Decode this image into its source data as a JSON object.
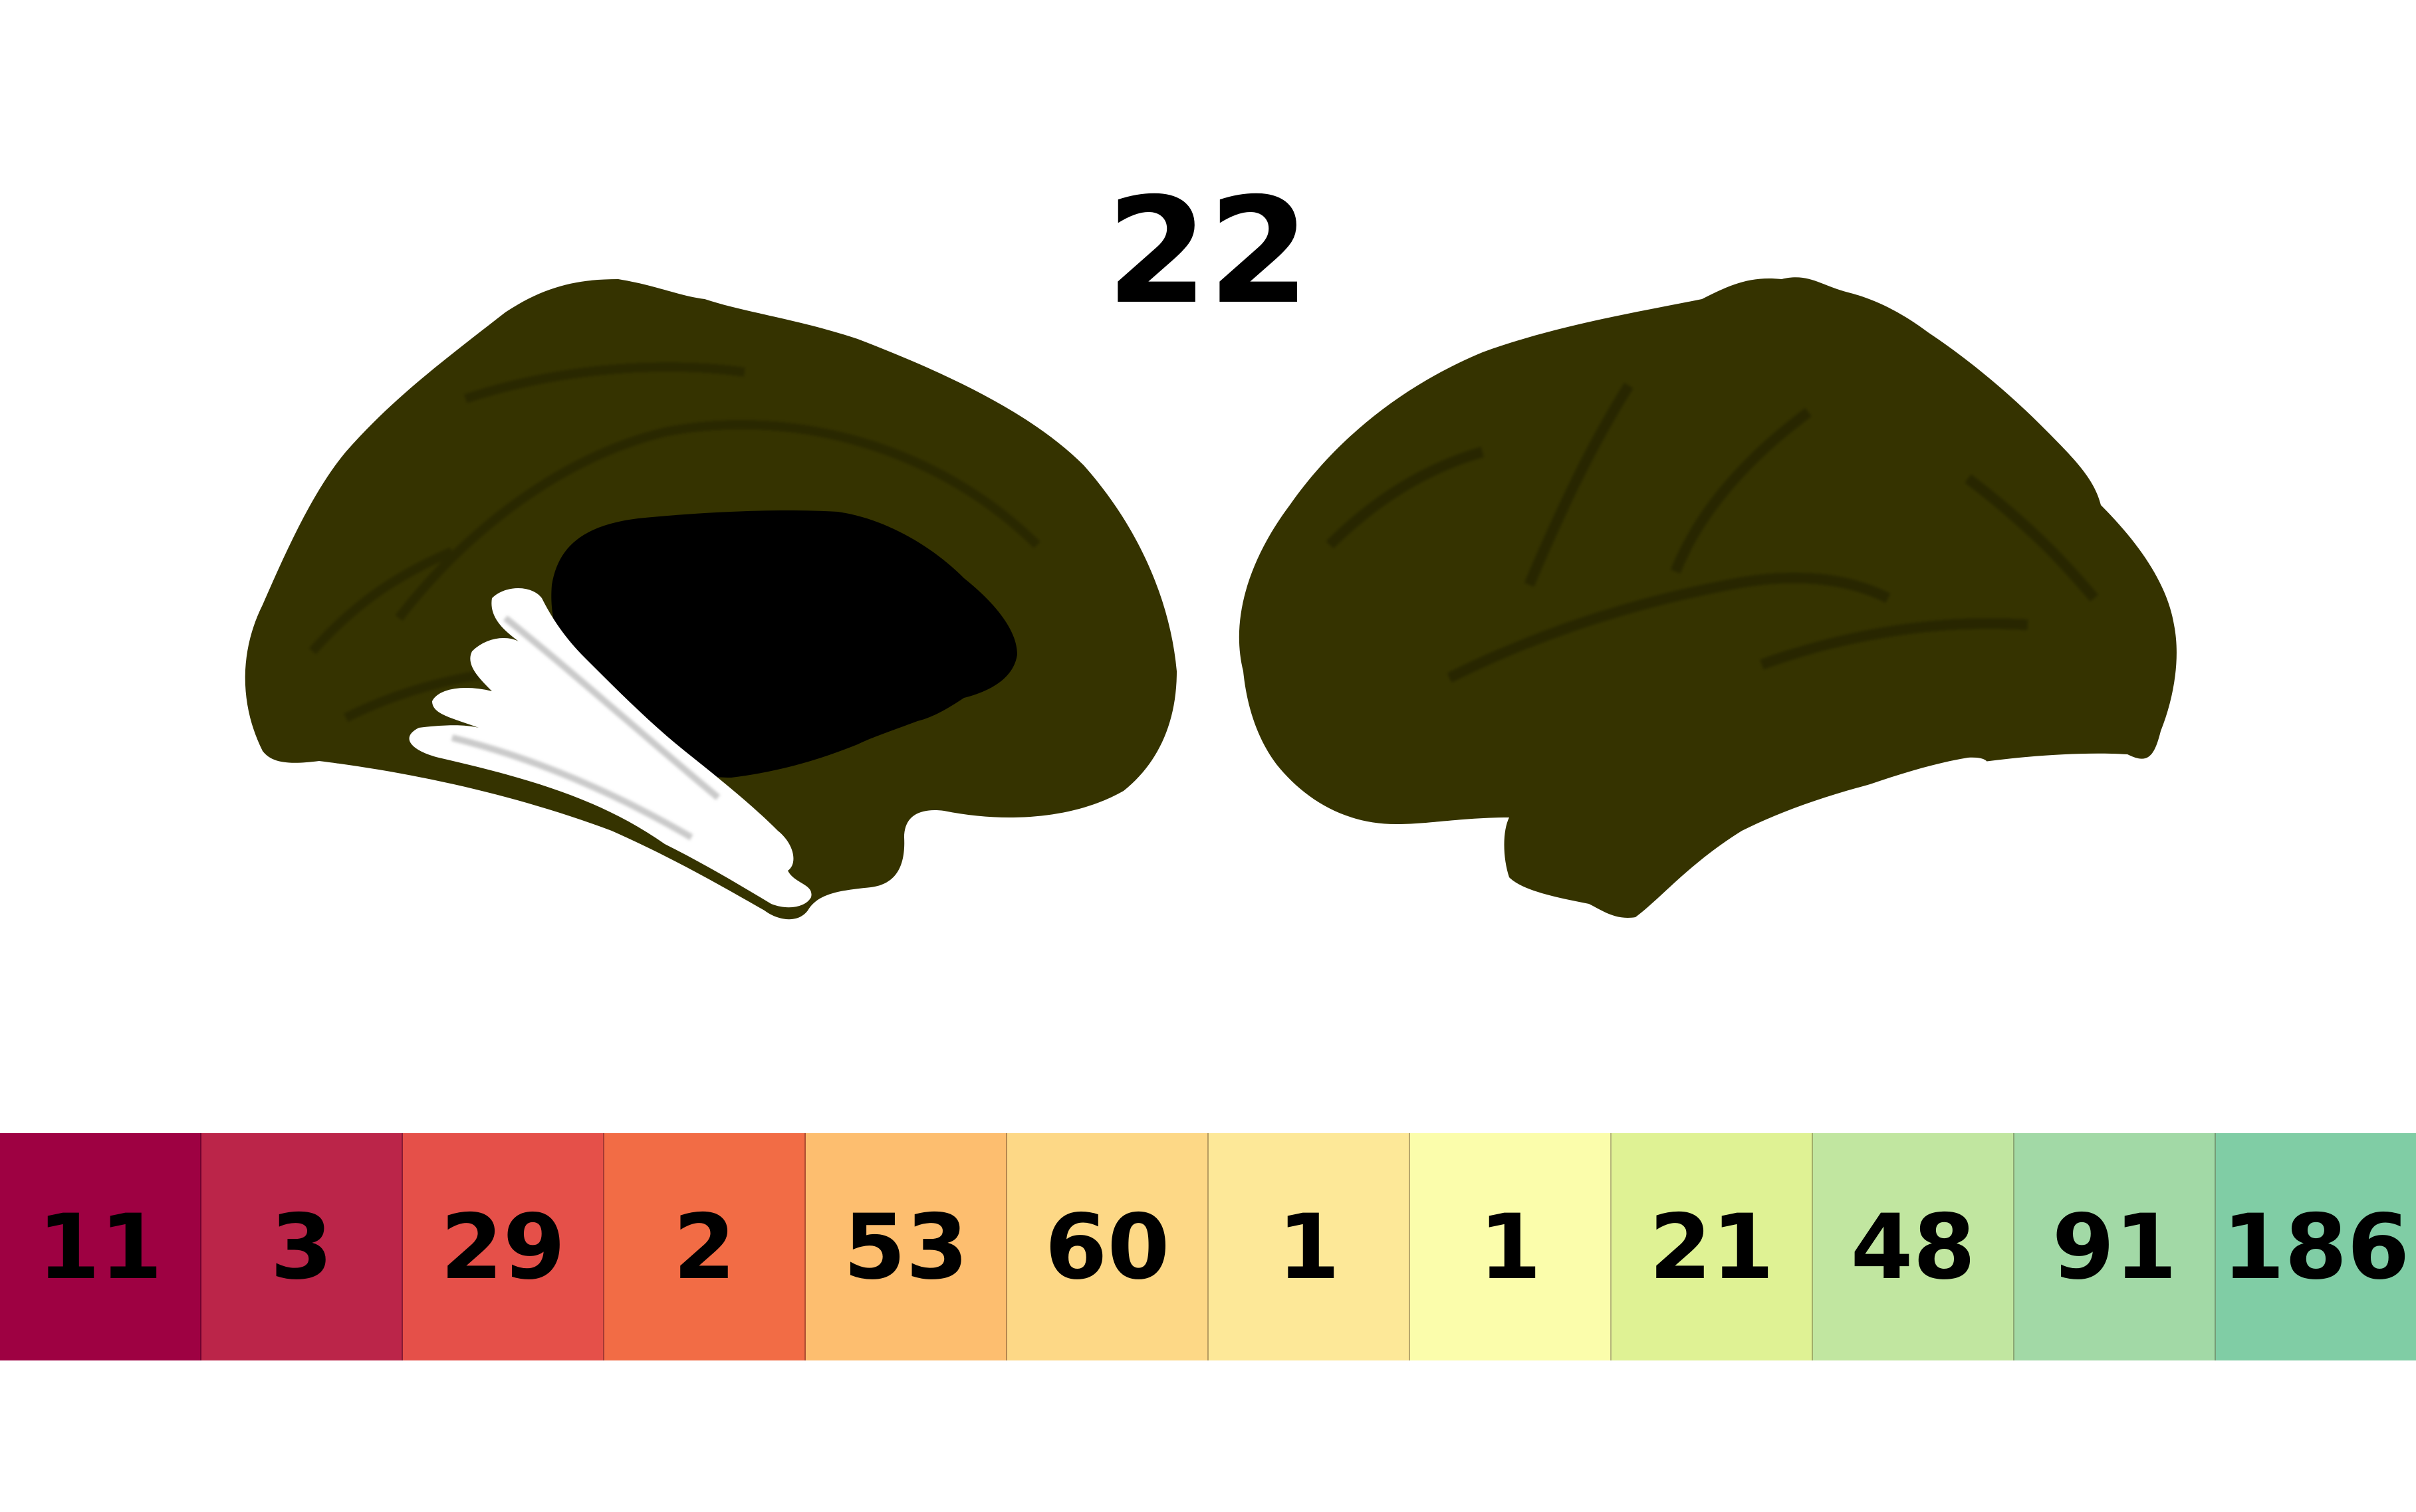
{
  "title": "22",
  "surface": {
    "region_color": "#353300",
    "medial_wall_color": "#000000",
    "unlabeled_color": "#ffffff"
  },
  "legend": [
    {
      "label": "11",
      "color": "#9e0142"
    },
    {
      "label": "3",
      "color": "#bb2549"
    },
    {
      "label": "29",
      "color": "#e55049"
    },
    {
      "label": "2",
      "color": "#f26c45"
    },
    {
      "label": "53",
      "color": "#fdbe6f"
    },
    {
      "label": "60",
      "color": "#fdd886"
    },
    {
      "label": "1",
      "color": "#fde898"
    },
    {
      "label": "1",
      "color": "#fbfdab"
    },
    {
      "label": "21",
      "color": "#dff294"
    },
    {
      "label": "48",
      "color": "#c1e6a0"
    },
    {
      "label": "91",
      "color": "#a2d9a6"
    },
    {
      "label": "186",
      "color": "#80cda5"
    }
  ]
}
